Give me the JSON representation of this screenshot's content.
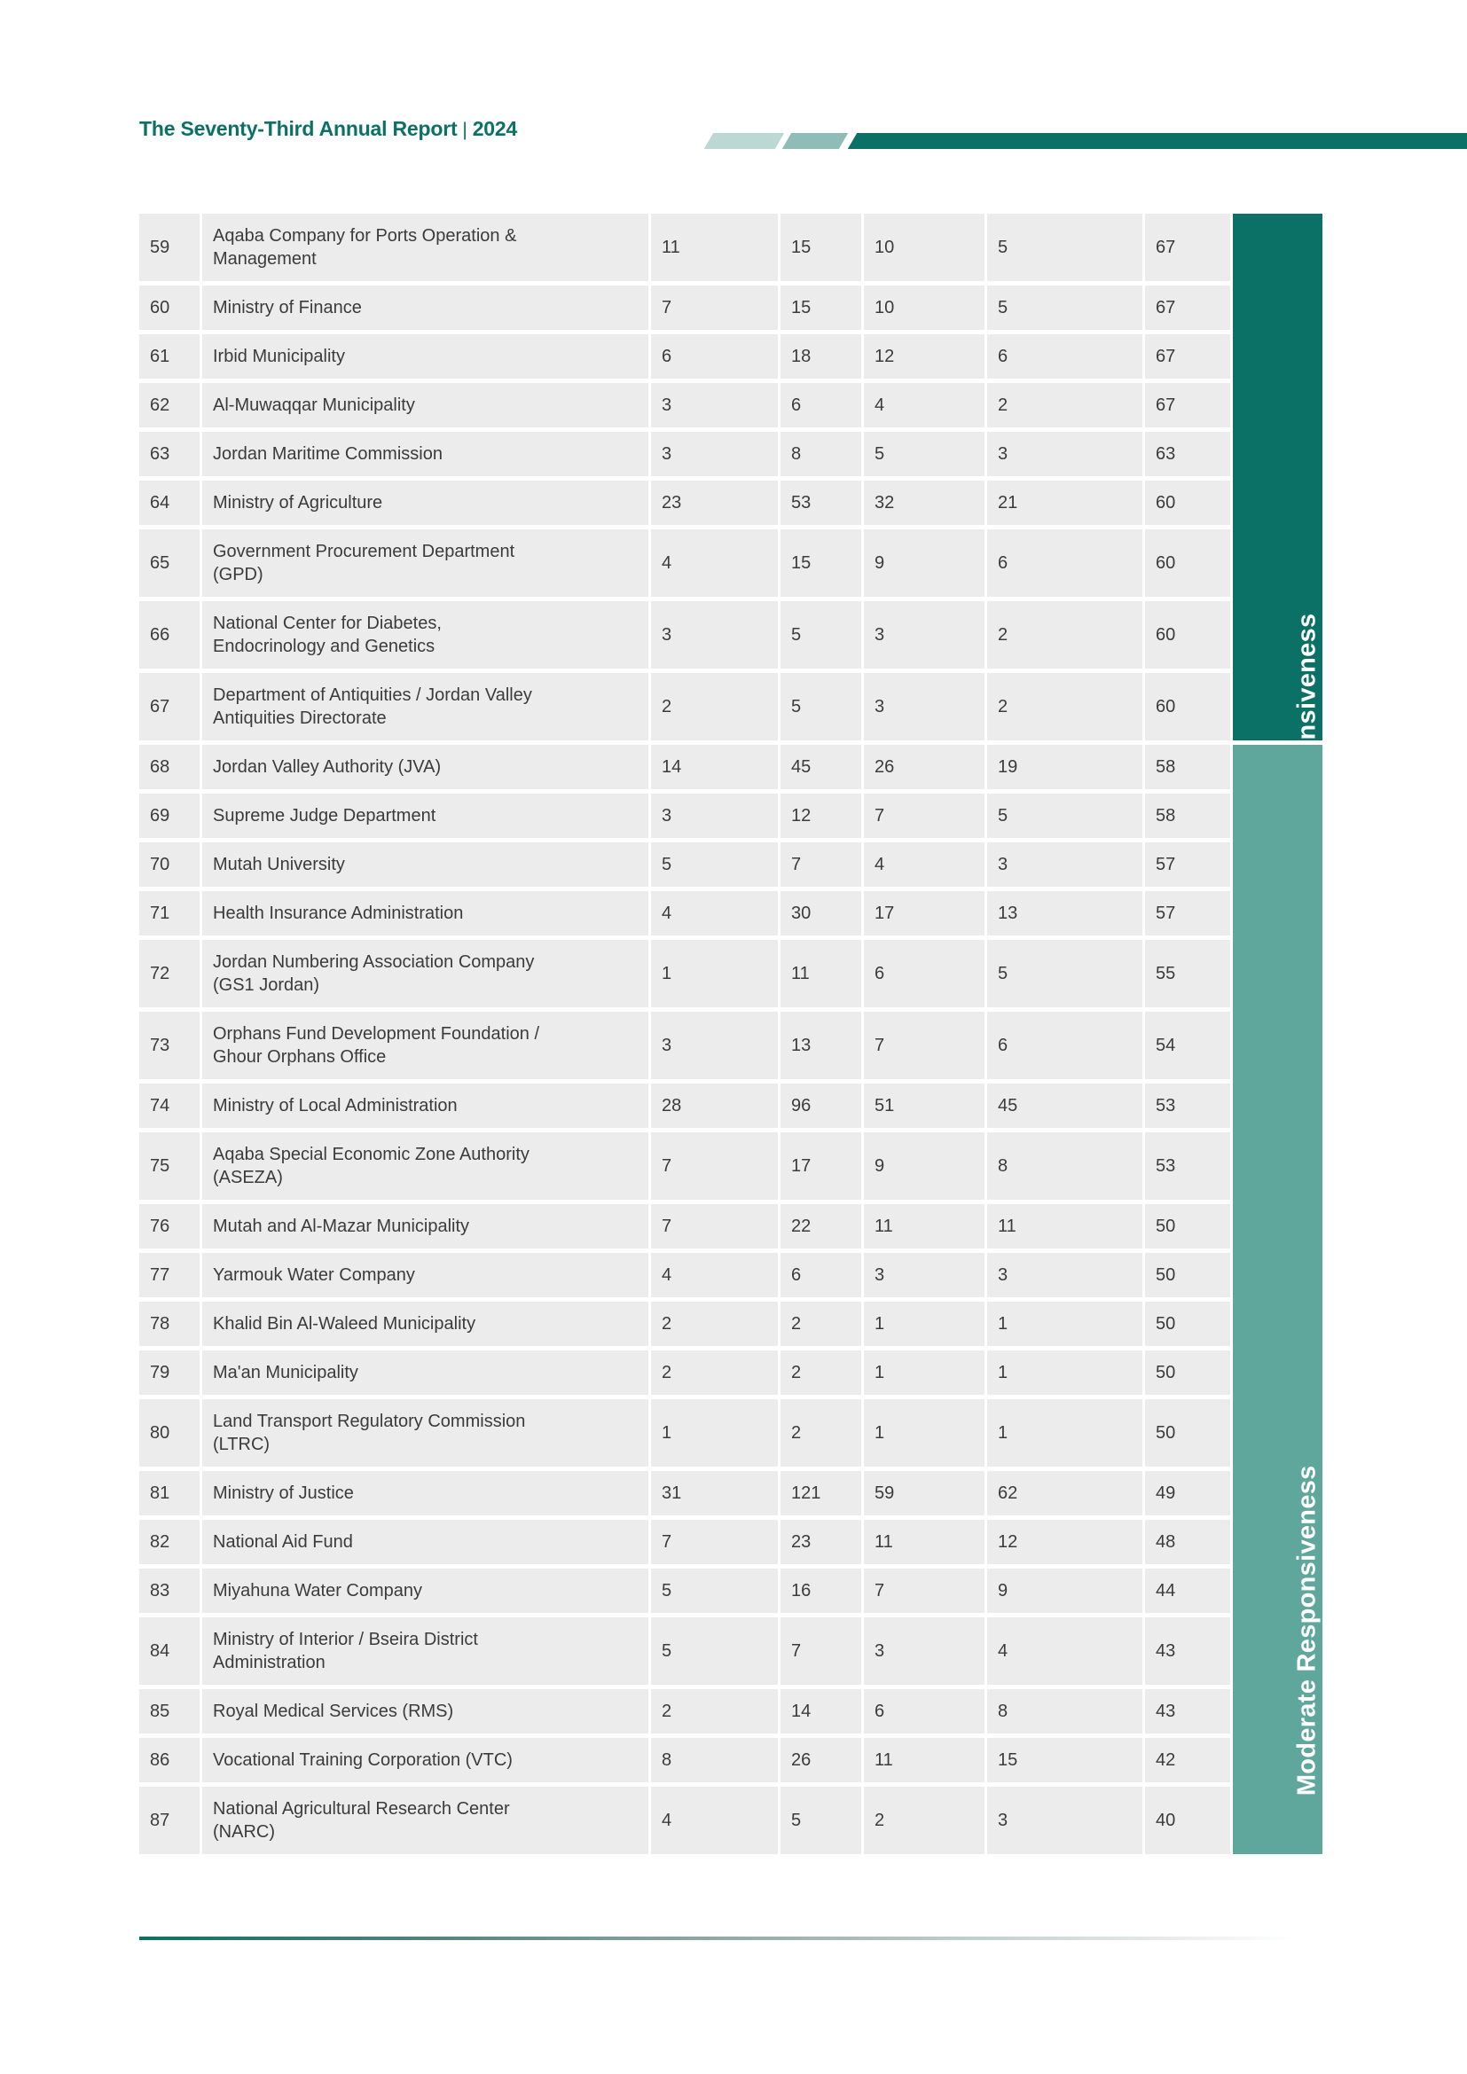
{
  "header": {
    "title": "The Seventy-Third Annual Report",
    "separator": "|",
    "year": "2024"
  },
  "sidebar": {
    "high_label": "High Responsiveness",
    "moderate_label": "Moderate Responsiveness",
    "high_row_count": 9,
    "moderate_row_count": 20
  },
  "colors": {
    "dark_teal": "#0B7066",
    "moderate_teal": "#5FA79D",
    "decor_light": "#BCD8D4",
    "decor_mid": "#8FBCB6",
    "row_bg": "#ECECEC",
    "text": "#3B3B3B"
  },
  "table": {
    "rows": [
      {
        "rank": "59",
        "name": "Aqaba Company for Ports Operation &\nManagement",
        "values": [
          "11",
          "15",
          "10",
          "5",
          "67"
        ],
        "band": "high"
      },
      {
        "rank": "60",
        "name": "Ministry of Finance",
        "values": [
          "7",
          "15",
          "10",
          "5",
          "67"
        ],
        "band": "high"
      },
      {
        "rank": "61",
        "name": "Irbid Municipality",
        "values": [
          "6",
          "18",
          "12",
          "6",
          "67"
        ],
        "band": "high"
      },
      {
        "rank": "62",
        "name": "Al-Muwaqqar Municipality",
        "values": [
          "3",
          "6",
          "4",
          "2",
          "67"
        ],
        "band": "high"
      },
      {
        "rank": "63",
        "name": "Jordan Maritime Commission",
        "values": [
          "3",
          "8",
          "5",
          "3",
          "63"
        ],
        "band": "high"
      },
      {
        "rank": "64",
        "name": "Ministry of Agriculture",
        "values": [
          "23",
          "53",
          "32",
          "21",
          "60"
        ],
        "band": "high"
      },
      {
        "rank": "65",
        "name": "Government Procurement Department\n(GPD)",
        "values": [
          "4",
          "15",
          "9",
          "6",
          "60"
        ],
        "band": "high"
      },
      {
        "rank": "66",
        "name": "National Center for Diabetes,\nEndocrinology and Genetics",
        "values": [
          "3",
          "5",
          "3",
          "2",
          "60"
        ],
        "band": "high"
      },
      {
        "rank": "67",
        "name": "Department of Antiquities / Jordan Valley\nAntiquities Directorate",
        "values": [
          "2",
          "5",
          "3",
          "2",
          "60"
        ],
        "band": "high"
      },
      {
        "rank": "68",
        "name": "Jordan Valley Authority (JVA)",
        "values": [
          "14",
          "45",
          "26",
          "19",
          "58"
        ],
        "band": "moderate"
      },
      {
        "rank": "69",
        "name": "Supreme Judge Department",
        "values": [
          "3",
          "12",
          "7",
          "5",
          "58"
        ],
        "band": "moderate"
      },
      {
        "rank": "70",
        "name": "Mutah University",
        "values": [
          "5",
          "7",
          "4",
          "3",
          "57"
        ],
        "band": "moderate"
      },
      {
        "rank": "71",
        "name": "Health Insurance Administration",
        "values": [
          "4",
          "30",
          "17",
          "13",
          "57"
        ],
        "band": "moderate"
      },
      {
        "rank": "72",
        "name": "Jordan Numbering Association Company\n(GS1 Jordan)",
        "values": [
          "1",
          "11",
          "6",
          "5",
          "55"
        ],
        "band": "moderate"
      },
      {
        "rank": "73",
        "name": "Orphans Fund Development Foundation /\nGhour Orphans Office",
        "values": [
          "3",
          "13",
          "7",
          "6",
          "54"
        ],
        "band": "moderate"
      },
      {
        "rank": "74",
        "name": "Ministry of Local Administration",
        "values": [
          "28",
          "96",
          "51",
          "45",
          "53"
        ],
        "band": "moderate"
      },
      {
        "rank": "75",
        "name": "Aqaba Special Economic Zone Authority\n(ASEZA)",
        "values": [
          "7",
          "17",
          "9",
          "8",
          "53"
        ],
        "band": "moderate"
      },
      {
        "rank": "76",
        "name": "Mutah and Al-Mazar Municipality",
        "values": [
          "7",
          "22",
          "11",
          "11",
          "50"
        ],
        "band": "moderate"
      },
      {
        "rank": "77",
        "name": "Yarmouk Water Company",
        "values": [
          "4",
          "6",
          "3",
          "3",
          "50"
        ],
        "band": "moderate"
      },
      {
        "rank": "78",
        "name": "Khalid Bin Al-Waleed Municipality",
        "values": [
          "2",
          "2",
          "1",
          "1",
          "50"
        ],
        "band": "moderate"
      },
      {
        "rank": "79",
        "name": "Ma'an Municipality",
        "values": [
          "2",
          "2",
          "1",
          "1",
          "50"
        ],
        "band": "moderate"
      },
      {
        "rank": "80",
        "name": "Land Transport Regulatory Commission\n(LTRC)",
        "values": [
          "1",
          "2",
          "1",
          "1",
          "50"
        ],
        "band": "moderate"
      },
      {
        "rank": "81",
        "name": "Ministry of Justice",
        "values": [
          "31",
          "121",
          "59",
          "62",
          "49"
        ],
        "band": "moderate"
      },
      {
        "rank": "82",
        "name": "National Aid Fund",
        "values": [
          "7",
          "23",
          "11",
          "12",
          "48"
        ],
        "band": "moderate"
      },
      {
        "rank": "83",
        "name": "Miyahuna Water Company",
        "values": [
          "5",
          "16",
          "7",
          "9",
          "44"
        ],
        "band": "moderate"
      },
      {
        "rank": "84",
        "name": "Ministry of Interior / Bseira District\nAdministration",
        "values": [
          "5",
          "7",
          "3",
          "4",
          "43"
        ],
        "band": "moderate"
      },
      {
        "rank": "85",
        "name": "Royal Medical Services (RMS)",
        "values": [
          "2",
          "14",
          "6",
          "8",
          "43"
        ],
        "band": "moderate"
      },
      {
        "rank": "86",
        "name": "Vocational Training Corporation (VTC)",
        "values": [
          "8",
          "26",
          "11",
          "15",
          "42"
        ],
        "band": "moderate"
      },
      {
        "rank": "87",
        "name": "National Agricultural Research Center\n(NARC)",
        "values": [
          "4",
          "5",
          "2",
          "3",
          "40"
        ],
        "band": "moderate"
      }
    ]
  }
}
